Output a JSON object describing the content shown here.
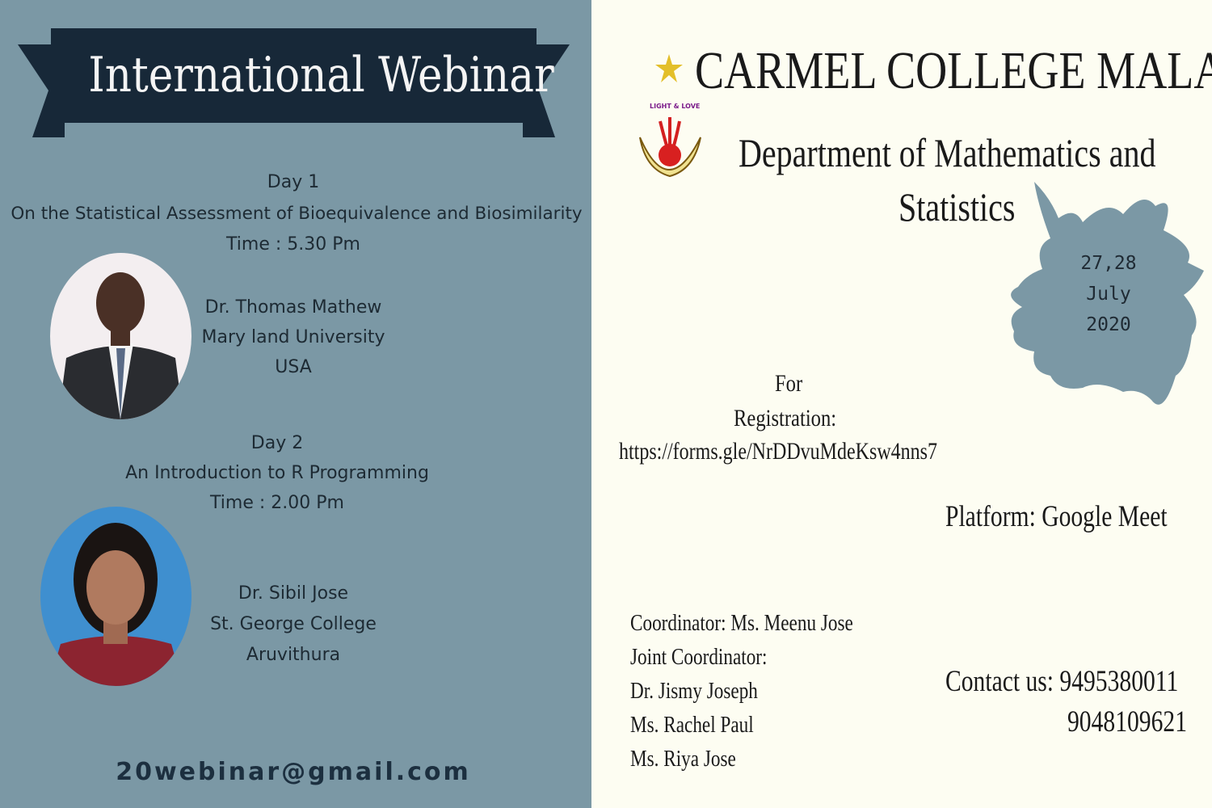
{
  "left": {
    "title": "International Webinar",
    "day1": {
      "label": "Day 1",
      "topic": "On the Statistical Assessment of Bioequivalence and Biosimilarity",
      "time": "Time : 5.30 Pm",
      "speaker": "Dr. Thomas Mathew",
      "affiliation": "Mary land University",
      "country": "USA"
    },
    "day2": {
      "label": "Day 2",
      "topic": "An Introduction to R Programming",
      "time": "Time : 2.00 Pm",
      "speaker": "Dr. Sibil Jose",
      "affiliation": "St. George College",
      "place": "Aruvithura"
    },
    "email": "20webinar@gmail.com"
  },
  "right": {
    "college": "CARMEL COLLEGE MALA",
    "logo_motto": "LIGHT & LOVE",
    "department_line1": "Department of Mathematics and",
    "department_line2": "Statistics",
    "date": {
      "days": "27,28",
      "month": "July",
      "year": "2020"
    },
    "registration_line1": "For",
    "registration_line2": "Registration:",
    "registration_link": "https://forms.gle/NrDDvuMdeKsw4nns7",
    "platform": "Platform: Google Meet",
    "coordinators": [
      "Coordinator: Ms. Meenu Jose",
      "Joint Coordinator:",
      "Dr. Jismy Joseph",
      "Ms. Rachel Paul",
      "Ms. Riya Jose"
    ],
    "contact_label": "Contact us: 9495380011",
    "contact_phone2": "9048109621"
  },
  "colors": {
    "left_bg": "#7b98a5",
    "banner": "#172838",
    "right_bg": "#fdfdf2",
    "splash": "#7b98a5"
  }
}
